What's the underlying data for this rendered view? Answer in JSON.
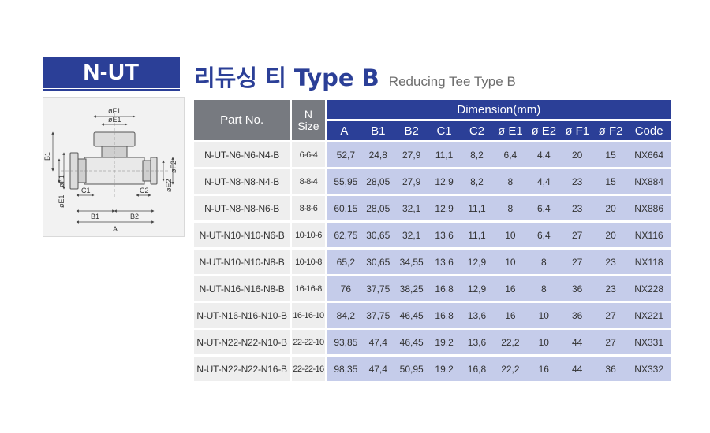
{
  "header": {
    "badge": "N-UT",
    "title_ko": "리듀싱 티 Type B",
    "title_en": "Reducing Tee Type B"
  },
  "diagram": {
    "labels": {
      "f1_top": "øF1",
      "e1_top": "øE1",
      "b1_side": "B1",
      "f1_side": "øF1",
      "e1_side": "øE1",
      "c1": "C1",
      "c2": "C2",
      "e2": "øE2",
      "f2": "øF2",
      "b1_bottom": "B1",
      "b2_bottom": "B2",
      "a_bottom": "A"
    }
  },
  "table": {
    "head": {
      "part_no": "Part No.",
      "n_label": "N",
      "size_label": "Size",
      "dimension": "Dimension(mm)",
      "columns": [
        "A",
        "B1",
        "B2",
        "C1",
        "C2",
        "ø E1",
        "ø E2",
        "ø F1",
        "ø F2",
        "Code"
      ]
    },
    "rows": [
      {
        "part": "N-UT-N6-N6-N4-B",
        "size": "6-6-4",
        "A": "52,7",
        "B1": "24,8",
        "B2": "27,9",
        "C1": "11,1",
        "C2": "8,2",
        "E1": "6,4",
        "E2": "4,4",
        "F1": "20",
        "F2": "15",
        "code": "NX664"
      },
      {
        "part": "N-UT-N8-N8-N4-B",
        "size": "8-8-4",
        "A": "55,95",
        "B1": "28,05",
        "B2": "27,9",
        "C1": "12,9",
        "C2": "8,2",
        "E1": "8",
        "E2": "4,4",
        "F1": "23",
        "F2": "15",
        "code": "NX884"
      },
      {
        "part": "N-UT-N8-N8-N6-B",
        "size": "8-8-6",
        "A": "60,15",
        "B1": "28,05",
        "B2": "32,1",
        "C1": "12,9",
        "C2": "11,1",
        "E1": "8",
        "E2": "6,4",
        "F1": "23",
        "F2": "20",
        "code": "NX886"
      },
      {
        "part": "N-UT-N10-N10-N6-B",
        "size": "10-10-6",
        "A": "62,75",
        "B1": "30,65",
        "B2": "32,1",
        "C1": "13,6",
        "C2": "11,1",
        "E1": "10",
        "E2": "6,4",
        "F1": "27",
        "F2": "20",
        "code": "NX116"
      },
      {
        "part": "N-UT-N10-N10-N8-B",
        "size": "10-10-8",
        "A": "65,2",
        "B1": "30,65",
        "B2": "34,55",
        "C1": "13,6",
        "C2": "12,9",
        "E1": "10",
        "E2": "8",
        "F1": "27",
        "F2": "23",
        "code": "NX118"
      },
      {
        "part": "N-UT-N16-N16-N8-B",
        "size": "16-16-8",
        "A": "76",
        "B1": "37,75",
        "B2": "38,25",
        "C1": "16,8",
        "C2": "12,9",
        "E1": "16",
        "E2": "8",
        "F1": "36",
        "F2": "23",
        "code": "NX228"
      },
      {
        "part": "N-UT-N16-N16-N10-B",
        "size": "16-16-10",
        "A": "84,2",
        "B1": "37,75",
        "B2": "46,45",
        "C1": "16,8",
        "C2": "13,6",
        "E1": "16",
        "E2": "10",
        "F1": "36",
        "F2": "27",
        "code": "NX221"
      },
      {
        "part": "N-UT-N22-N22-N10-B",
        "size": "22-22-10",
        "A": "93,85",
        "B1": "47,4",
        "B2": "46,45",
        "C1": "19,2",
        "C2": "13,6",
        "E1": "22,2",
        "E2": "10",
        "F1": "44",
        "F2": "27",
        "code": "NX331"
      },
      {
        "part": "N-UT-N22-N22-N16-B",
        "size": "22-22-16",
        "A": "98,35",
        "B1": "47,4",
        "B2": "50,95",
        "C1": "19,2",
        "C2": "16,8",
        "E1": "22,2",
        "E2": "16",
        "F1": "44",
        "F2": "36",
        "code": "NX332"
      }
    ]
  }
}
